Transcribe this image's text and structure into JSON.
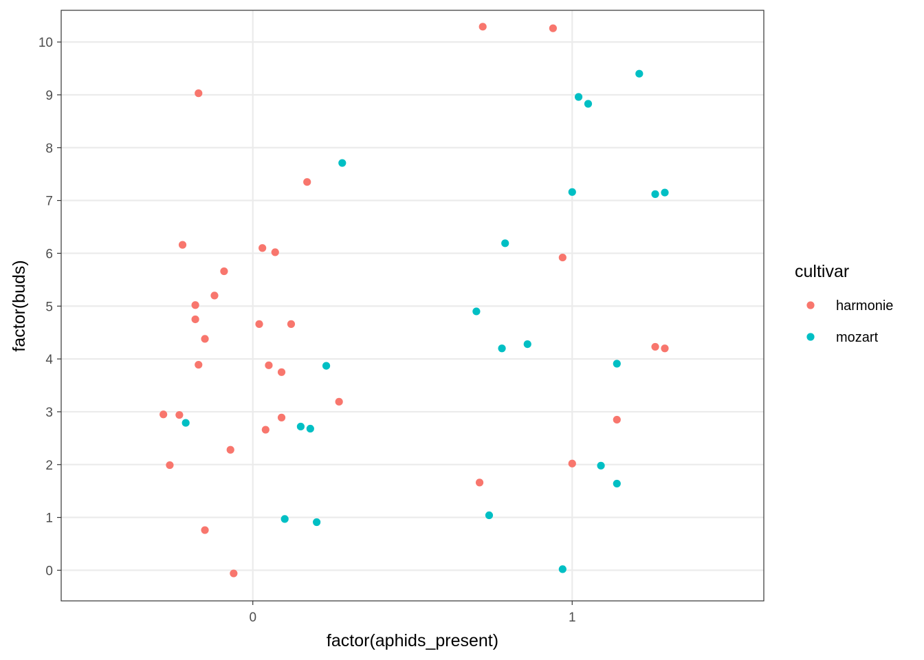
{
  "chart_data": {
    "type": "scatter",
    "xlabel": "factor(aphids_present)",
    "ylabel": "factor(buds)",
    "x_ticks": [
      "0",
      "1"
    ],
    "y_ticks": [
      "0",
      "1",
      "2",
      "3",
      "4",
      "5",
      "6",
      "7",
      "8",
      "9",
      "10"
    ],
    "xlim": [
      -0.6,
      1.6
    ],
    "ylim": [
      -0.58,
      10.6
    ],
    "grid": true,
    "legend": {
      "title": "cultivar",
      "position": "right",
      "entries": [
        "harmonie",
        "mozart"
      ]
    },
    "colors": {
      "harmonie": "#F8766D",
      "mozart": "#00BFC4"
    },
    "series": [
      {
        "name": "harmonie",
        "color": "#F8766D",
        "points": [
          [
            0.72,
            10.29
          ],
          [
            0.94,
            10.26
          ],
          [
            -0.17,
            9.03
          ],
          [
            0.17,
            7.35
          ],
          [
            -0.22,
            6.16
          ],
          [
            0.03,
            6.1
          ],
          [
            0.07,
            6.02
          ],
          [
            0.97,
            5.92
          ],
          [
            -0.09,
            5.66
          ],
          [
            -0.12,
            5.2
          ],
          [
            -0.18,
            5.02
          ],
          [
            -0.18,
            4.75
          ],
          [
            0.02,
            4.66
          ],
          [
            0.12,
            4.66
          ],
          [
            -0.15,
            4.38
          ],
          [
            1.26,
            4.23
          ],
          [
            1.29,
            4.2
          ],
          [
            -0.17,
            3.89
          ],
          [
            0.05,
            3.88
          ],
          [
            0.09,
            3.75
          ],
          [
            0.27,
            3.19
          ],
          [
            -0.28,
            2.95
          ],
          [
            -0.23,
            2.94
          ],
          [
            0.09,
            2.89
          ],
          [
            1.14,
            2.85
          ],
          [
            0.04,
            2.66
          ],
          [
            -0.07,
            2.28
          ],
          [
            1.0,
            2.02
          ],
          [
            -0.26,
            1.99
          ],
          [
            0.71,
            1.66
          ],
          [
            -0.15,
            0.76
          ],
          [
            -0.06,
            -0.06
          ]
        ]
      },
      {
        "name": "mozart",
        "color": "#00BFC4",
        "points": [
          [
            1.21,
            9.4
          ],
          [
            1.02,
            8.96
          ],
          [
            1.05,
            8.83
          ],
          [
            0.28,
            7.71
          ],
          [
            1.0,
            7.16
          ],
          [
            1.29,
            7.15
          ],
          [
            1.26,
            7.12
          ],
          [
            0.79,
            6.19
          ],
          [
            0.7,
            4.9
          ],
          [
            0.86,
            4.28
          ],
          [
            0.78,
            4.2
          ],
          [
            1.14,
            3.91
          ],
          [
            0.23,
            3.87
          ],
          [
            -0.21,
            2.79
          ],
          [
            0.15,
            2.72
          ],
          [
            0.18,
            2.68
          ],
          [
            1.09,
            1.98
          ],
          [
            1.14,
            1.64
          ],
          [
            0.74,
            1.04
          ],
          [
            0.1,
            0.97
          ],
          [
            0.2,
            0.91
          ],
          [
            0.97,
            0.02
          ]
        ]
      }
    ]
  }
}
